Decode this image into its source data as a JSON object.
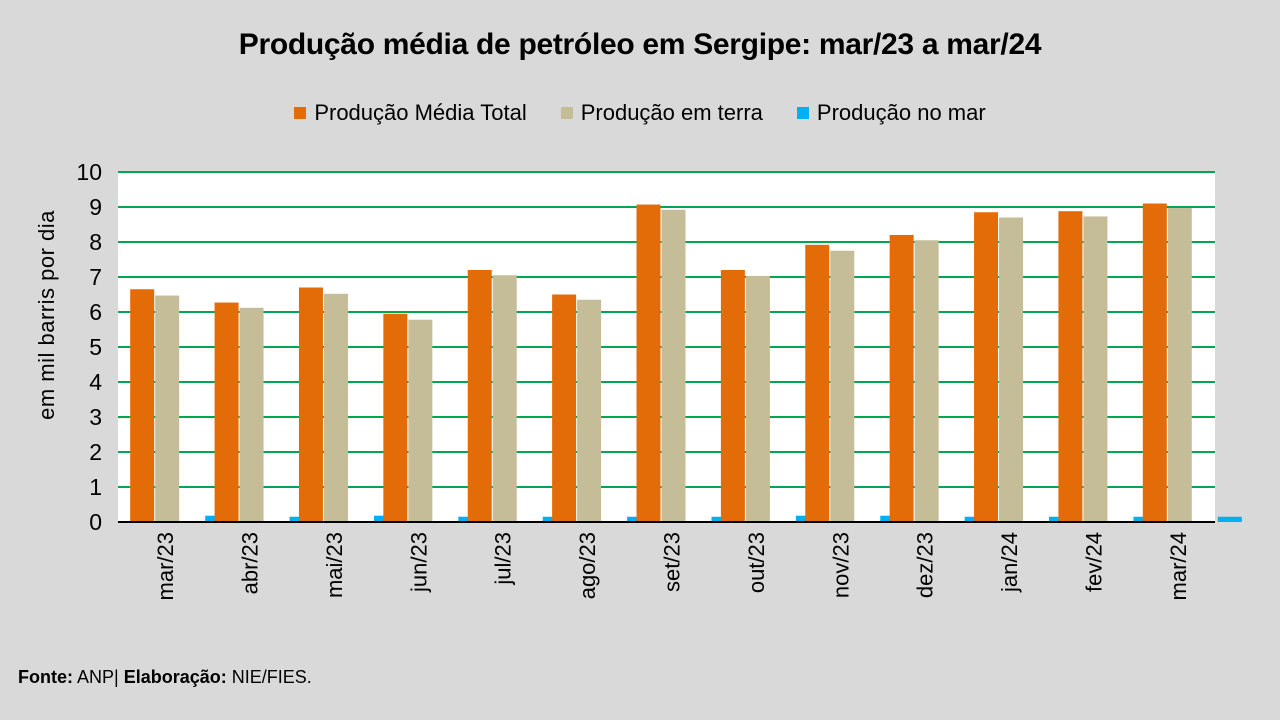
{
  "chart_data": {
    "type": "bar",
    "title": "Produção média de petróleo em Sergipe: mar/23 a mar/24",
    "ylabel": "em mil barris por dia",
    "xlabel": "",
    "ylim": [
      0,
      10
    ],
    "yticks": [
      0,
      1,
      2,
      3,
      4,
      5,
      6,
      7,
      8,
      9,
      10
    ],
    "grid": true,
    "legend_position": "top-center",
    "categories": [
      "mar/23",
      "abr/23",
      "mai/23",
      "jun/23",
      "jul/23",
      "ago/23",
      "set/23",
      "out/23",
      "nov/23",
      "dez/23",
      "jan/24",
      "fev/24",
      "mar/24"
    ],
    "series": [
      {
        "name": "Produção Média Total",
        "color": "#e36c09",
        "values": [
          6.65,
          6.27,
          6.7,
          5.95,
          7.2,
          6.5,
          9.07,
          7.2,
          7.92,
          8.2,
          8.85,
          8.88,
          9.1
        ]
      },
      {
        "name": "Produção em terra",
        "color": "#c4bd97",
        "values": [
          6.47,
          6.12,
          6.52,
          5.78,
          7.05,
          6.35,
          8.92,
          7.03,
          7.75,
          8.05,
          8.7,
          8.73,
          8.97
        ]
      },
      {
        "name": "Produção no mar",
        "color": "#00b0f0",
        "values": [
          0.18,
          0.15,
          0.18,
          0.15,
          0.15,
          0.15,
          0.15,
          0.18,
          0.18,
          0.15,
          0.15,
          0.15,
          0.15
        ]
      }
    ]
  },
  "colors": {
    "background": "#d9d9d9",
    "plot_background": "#ffffff",
    "gridline": "#00a651",
    "axis": "#000000"
  },
  "source": {
    "fonte_label": "Fonte:",
    "fonte_value": "ANP|",
    "elaboracao_label": "Elaboração:",
    "elaboracao_value": "NIE/FIES."
  }
}
